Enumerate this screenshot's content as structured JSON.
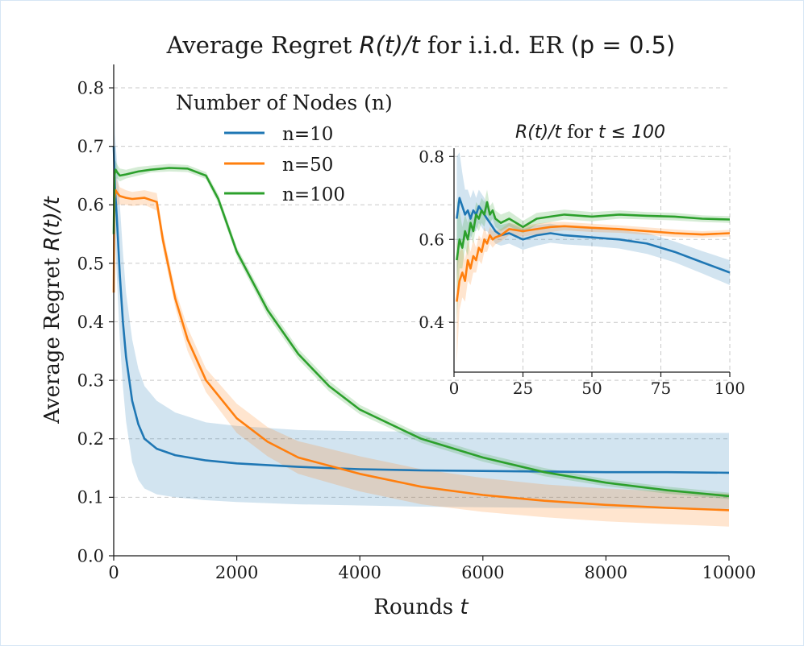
{
  "chart_data": [
    {
      "type": "line",
      "title": "Average Regret",
      "title_math": "R(t)/t",
      "title_rest": "for i.i.d. ER",
      "title_param": "(p = 0.5)",
      "xlabel": "Rounds",
      "xlabel_math": "t",
      "ylabel": "Average Regret",
      "ylabel_math": "R(t)/t",
      "xlim": [
        0,
        10000
      ],
      "ylim": [
        0,
        0.84
      ],
      "xticks": [
        0,
        2000,
        4000,
        6000,
        8000,
        10000
      ],
      "yticks": [
        0.0,
        0.1,
        0.2,
        0.3,
        0.4,
        0.5,
        0.6,
        0.7,
        0.8
      ],
      "xtick_labels": [
        "0",
        "2000",
        "4000",
        "6000",
        "8000",
        "10000"
      ],
      "ytick_labels": [
        "0.0",
        "0.1",
        "0.2",
        "0.3",
        "0.4",
        "0.5",
        "0.6",
        "0.7",
        "0.8"
      ],
      "grid": "horizontal dashed",
      "legend": {
        "title": "Number of Nodes (n)",
        "placement": "upper-left",
        "entries": [
          "n=10",
          "n=50",
          "n=100"
        ]
      },
      "series": [
        {
          "name": "n=10",
          "color": "#1f77b4",
          "x": [
            0,
            20,
            50,
            100,
            150,
            200,
            300,
            400,
            500,
            700,
            1000,
            1500,
            2000,
            3000,
            4000,
            5000,
            6000,
            7000,
            8000,
            9000,
            10000
          ],
          "y": [
            0.7,
            0.63,
            0.58,
            0.48,
            0.4,
            0.34,
            0.265,
            0.225,
            0.2,
            0.183,
            0.172,
            0.163,
            0.158,
            0.152,
            0.148,
            0.146,
            0.145,
            0.144,
            0.143,
            0.143,
            0.142
          ],
          "lower": [
            0.6,
            0.55,
            0.48,
            0.37,
            0.29,
            0.23,
            0.16,
            0.13,
            0.115,
            0.105,
            0.1,
            0.095,
            0.092,
            0.088,
            0.086,
            0.084,
            0.083,
            0.082,
            0.081,
            0.08,
            0.08
          ],
          "upper": [
            0.8,
            0.72,
            0.68,
            0.6,
            0.52,
            0.45,
            0.37,
            0.32,
            0.29,
            0.265,
            0.245,
            0.228,
            0.222,
            0.215,
            0.213,
            0.212,
            0.211,
            0.21,
            0.21,
            0.21,
            0.21
          ]
        },
        {
          "name": "n=50",
          "color": "#ff7f0e",
          "x": [
            0,
            10,
            30,
            60,
            100,
            200,
            300,
            500,
            700,
            800,
            1000,
            1200,
            1500,
            2000,
            2500,
            3000,
            4000,
            5000,
            6000,
            7000,
            8000,
            9000,
            10000
          ],
          "y": [
            0.45,
            0.61,
            0.625,
            0.62,
            0.615,
            0.612,
            0.61,
            0.612,
            0.605,
            0.54,
            0.44,
            0.37,
            0.3,
            0.235,
            0.195,
            0.168,
            0.14,
            0.118,
            0.104,
            0.094,
            0.087,
            0.082,
            0.078
          ],
          "lower": [
            0.3,
            0.55,
            0.6,
            0.6,
            0.6,
            0.6,
            0.598,
            0.6,
            0.59,
            0.525,
            0.425,
            0.35,
            0.28,
            0.21,
            0.17,
            0.14,
            0.11,
            0.088,
            0.075,
            0.066,
            0.059,
            0.054,
            0.05
          ],
          "upper": [
            0.6,
            0.66,
            0.65,
            0.64,
            0.63,
            0.625,
            0.622,
            0.625,
            0.62,
            0.555,
            0.455,
            0.39,
            0.32,
            0.26,
            0.22,
            0.196,
            0.17,
            0.148,
            0.133,
            0.122,
            0.115,
            0.11,
            0.106
          ]
        },
        {
          "name": "n=100",
          "color": "#2ca02c",
          "x": [
            0,
            10,
            30,
            60,
            100,
            200,
            400,
            600,
            900,
            1200,
            1500,
            1700,
            2000,
            2500,
            3000,
            3500,
            4000,
            5000,
            6000,
            7000,
            8000,
            9000,
            10000
          ],
          "y": [
            0.55,
            0.65,
            0.66,
            0.655,
            0.65,
            0.652,
            0.657,
            0.66,
            0.663,
            0.662,
            0.65,
            0.61,
            0.52,
            0.42,
            0.345,
            0.29,
            0.25,
            0.2,
            0.168,
            0.143,
            0.125,
            0.112,
            0.102
          ],
          "lower": [
            0.45,
            0.63,
            0.645,
            0.645,
            0.64,
            0.645,
            0.65,
            0.655,
            0.657,
            0.656,
            0.644,
            0.602,
            0.512,
            0.41,
            0.336,
            0.281,
            0.242,
            0.193,
            0.161,
            0.136,
            0.119,
            0.106,
            0.097
          ],
          "upper": [
            0.65,
            0.68,
            0.675,
            0.668,
            0.662,
            0.66,
            0.665,
            0.667,
            0.67,
            0.668,
            0.656,
            0.618,
            0.528,
            0.43,
            0.354,
            0.299,
            0.258,
            0.207,
            0.175,
            0.15,
            0.131,
            0.118,
            0.108
          ]
        }
      ]
    },
    {
      "type": "line",
      "title_math": "R(t)/t",
      "title_rest": "for",
      "title_cond": "t ≤ 100",
      "xlim": [
        0,
        100
      ],
      "ylim": [
        0.28,
        0.82
      ],
      "xticks": [
        0,
        25,
        50,
        75,
        100
      ],
      "yticks": [
        0.4,
        0.6,
        0.8
      ],
      "xtick_labels": [
        "0",
        "25",
        "50",
        "75",
        "100"
      ],
      "ytick_labels": [
        "0.4",
        "0.6",
        "0.8"
      ],
      "grid": "both dashed",
      "series": [
        {
          "name": "n=10",
          "color": "#1f77b4",
          "x": [
            1,
            2,
            3,
            4,
            5,
            6,
            7,
            8,
            9,
            10,
            11,
            12,
            13,
            14,
            15,
            17,
            20,
            25,
            30,
            35,
            40,
            50,
            60,
            70,
            80,
            90,
            100
          ],
          "y": [
            0.65,
            0.7,
            0.68,
            0.66,
            0.67,
            0.65,
            0.67,
            0.66,
            0.68,
            0.67,
            0.66,
            0.65,
            0.64,
            0.63,
            0.62,
            0.61,
            0.615,
            0.6,
            0.61,
            0.615,
            0.61,
            0.605,
            0.6,
            0.59,
            0.57,
            0.545,
            0.52
          ],
          "lower": [
            0.5,
            0.58,
            0.6,
            0.6,
            0.62,
            0.6,
            0.62,
            0.62,
            0.64,
            0.63,
            0.62,
            0.62,
            0.61,
            0.6,
            0.59,
            0.585,
            0.59,
            0.575,
            0.585,
            0.592,
            0.588,
            0.584,
            0.578,
            0.565,
            0.545,
            0.518,
            0.49
          ],
          "upper": [
            0.8,
            0.81,
            0.76,
            0.72,
            0.72,
            0.7,
            0.72,
            0.7,
            0.72,
            0.71,
            0.7,
            0.68,
            0.67,
            0.66,
            0.65,
            0.635,
            0.64,
            0.625,
            0.635,
            0.638,
            0.632,
            0.626,
            0.622,
            0.615,
            0.595,
            0.572,
            0.55
          ]
        },
        {
          "name": "n=50",
          "color": "#ff7f0e",
          "x": [
            1,
            2,
            3,
            4,
            5,
            6,
            7,
            8,
            9,
            10,
            11,
            12,
            13,
            14,
            15,
            17,
            20,
            25,
            30,
            35,
            40,
            50,
            60,
            70,
            80,
            90,
            100
          ],
          "y": [
            0.45,
            0.5,
            0.52,
            0.5,
            0.55,
            0.53,
            0.56,
            0.55,
            0.58,
            0.57,
            0.6,
            0.59,
            0.61,
            0.6,
            0.605,
            0.61,
            0.625,
            0.62,
            0.625,
            0.63,
            0.632,
            0.628,
            0.625,
            0.62,
            0.615,
            0.612,
            0.615
          ],
          "lower": [
            0.3,
            0.43,
            0.46,
            0.45,
            0.5,
            0.49,
            0.52,
            0.52,
            0.55,
            0.54,
            0.57,
            0.57,
            0.59,
            0.58,
            0.588,
            0.595,
            0.61,
            0.607,
            0.612,
            0.618,
            0.622,
            0.618,
            0.616,
            0.611,
            0.606,
            0.604,
            0.607
          ],
          "upper": [
            0.6,
            0.57,
            0.58,
            0.55,
            0.6,
            0.57,
            0.6,
            0.58,
            0.61,
            0.6,
            0.63,
            0.61,
            0.63,
            0.62,
            0.622,
            0.625,
            0.64,
            0.633,
            0.638,
            0.642,
            0.642,
            0.638,
            0.634,
            0.629,
            0.624,
            0.62,
            0.623
          ]
        },
        {
          "name": "n=100",
          "color": "#2ca02c",
          "x": [
            1,
            2,
            3,
            4,
            5,
            6,
            7,
            8,
            9,
            10,
            11,
            12,
            13,
            14,
            15,
            17,
            20,
            25,
            30,
            35,
            40,
            50,
            60,
            70,
            80,
            90,
            100
          ],
          "y": [
            0.55,
            0.6,
            0.58,
            0.62,
            0.6,
            0.64,
            0.62,
            0.66,
            0.65,
            0.67,
            0.66,
            0.69,
            0.66,
            0.67,
            0.65,
            0.64,
            0.65,
            0.63,
            0.65,
            0.655,
            0.66,
            0.655,
            0.66,
            0.657,
            0.655,
            0.65,
            0.648
          ],
          "lower": [
            0.4,
            0.53,
            0.53,
            0.58,
            0.56,
            0.61,
            0.59,
            0.63,
            0.62,
            0.64,
            0.63,
            0.66,
            0.64,
            0.65,
            0.63,
            0.62,
            0.632,
            0.615,
            0.636,
            0.642,
            0.648,
            0.644,
            0.65,
            0.648,
            0.646,
            0.642,
            0.64
          ],
          "upper": [
            0.7,
            0.67,
            0.63,
            0.66,
            0.64,
            0.67,
            0.65,
            0.69,
            0.68,
            0.7,
            0.69,
            0.72,
            0.68,
            0.69,
            0.67,
            0.66,
            0.668,
            0.645,
            0.664,
            0.668,
            0.672,
            0.666,
            0.67,
            0.666,
            0.664,
            0.658,
            0.656
          ]
        }
      ]
    }
  ]
}
